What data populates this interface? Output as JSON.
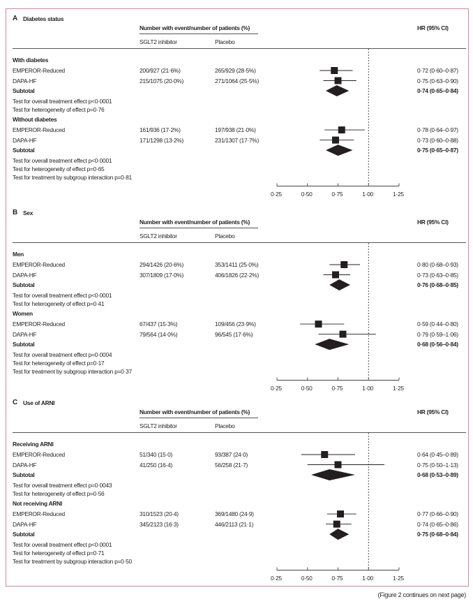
{
  "columns": {
    "header": "Number with event/number of patients (%)",
    "treatment": "SGLT2 inhibitor",
    "control": "Placebo",
    "hr": "HR (95% CI)"
  },
  "footer": "(Figure 2 continues on next page)",
  "colors": {
    "frame": "#d9819f",
    "marks": "#231f20"
  },
  "chart_data": [
    {
      "type": "forest",
      "letter": "A",
      "title": "Diabetes status",
      "xticks": [
        "0·25",
        "0·50",
        "0·75",
        "1·00",
        "1·25"
      ],
      "xlim": [
        0.25,
        1.25
      ],
      "reference_line": 1.0,
      "groups": [
        {
          "name": "With diabetes",
          "studies": [
            {
              "name": "EMPEROR-Reduced",
              "treatment": "200/927 (21·6%)",
              "control": "265/929 (28·5%)",
              "hr": 0.72,
              "lo": 0.6,
              "hi": 0.87,
              "label": "0·72 (0·60–0·87)"
            },
            {
              "name": "DAPA-HF",
              "treatment": "215/1075 (20·0%)",
              "control": "271/1064 (25·5%)",
              "hr": 0.75,
              "lo": 0.63,
              "hi": 0.9,
              "label": "0·75 (0·63–0·90)"
            }
          ],
          "subtotal": {
            "name": "Subtotal",
            "hr": 0.74,
            "lo": 0.65,
            "hi": 0.84,
            "label": "0·74 (0·65–0·84)"
          },
          "tests": [
            "Test for overall treatment effect p<0·0001",
            "Test for heterogeneity of effect p=0·76"
          ]
        },
        {
          "name": "Without diabetes",
          "studies": [
            {
              "name": "EMPEROR-Reduced",
              "treatment": "161/936 (17·2%)",
              "control": "197/938 (21·0%)",
              "hr": 0.78,
              "lo": 0.64,
              "hi": 0.97,
              "label": "0·78 (0·64–0·97)"
            },
            {
              "name": "DAPA-HF",
              "treatment": "171/1298 (13·2%)",
              "control": "231/1307 (17·7%)",
              "hr": 0.73,
              "lo": 0.6,
              "hi": 0.88,
              "label": "0·73 (0·60–0·88)"
            }
          ],
          "subtotal": {
            "name": "Subtotal",
            "hr": 0.75,
            "lo": 0.65,
            "hi": 0.87,
            "label": "0·75 (0·65–0·87)"
          },
          "tests": [
            "Test for overall treatment effect p<0·0001",
            "Test for heterogeneity of effect p=0·65",
            "Test for treatment by subgroup interaction p=0·81"
          ]
        }
      ]
    },
    {
      "type": "forest",
      "letter": "B",
      "title": "Sex",
      "xticks": [
        "0·25",
        "0·50",
        "0·75",
        "1·00",
        "1·25"
      ],
      "xlim": [
        0.25,
        1.25
      ],
      "reference_line": 1.0,
      "groups": [
        {
          "name": "Men",
          "studies": [
            {
              "name": "EMPEROR-Reduced",
              "treatment": "294/1426 (20·6%)",
              "control": "353/1411 (25·0%)",
              "hr": 0.8,
              "lo": 0.68,
              "hi": 0.93,
              "label": "0·80 (0·68–0·93)"
            },
            {
              "name": "DAPA-HF",
              "treatment": "307/1809 (17·0%)",
              "control": "406/1826 (22·2%)",
              "hr": 0.73,
              "lo": 0.63,
              "hi": 0.85,
              "label": "0·73 (0·63–0·85)"
            }
          ],
          "subtotal": {
            "name": "Subtotal",
            "hr": 0.76,
            "lo": 0.68,
            "hi": 0.85,
            "label": "0·76 (0·68–0·85)"
          },
          "tests": [
            "Test for overall treatment effect p<0·0001",
            "Test for heterogeneity of effect p=0·41"
          ]
        },
        {
          "name": "Women",
          "studies": [
            {
              "name": "EMPEROR-Reduced",
              "treatment": "67/437 (15·3%)",
              "control": "109/456 (23·9%)",
              "hr": 0.59,
              "lo": 0.44,
              "hi": 0.8,
              "label": "0·59 (0·44–0·80)"
            },
            {
              "name": "DAPA-HF",
              "treatment": "79/564 (14·0%)",
              "control": "96/545 (17·6%)",
              "hr": 0.79,
              "lo": 0.59,
              "hi": 1.06,
              "label": "0·79 (0·59–1·06)"
            }
          ],
          "subtotal": {
            "name": "Subtotal",
            "hr": 0.68,
            "lo": 0.56,
            "hi": 0.84,
            "label": "0·68 (0·56–0·84)"
          },
          "tests": [
            "Test for overall treatment effect p=0·0004",
            "Test for heterogeneity of effect p=0·17",
            "Test for treatment by subgroup interaction p=0·37"
          ]
        }
      ]
    },
    {
      "type": "forest",
      "letter": "C",
      "title": "Use of ARNI",
      "xticks": [
        "0·25",
        "0·50",
        "0·75",
        "1·00",
        "1·25"
      ],
      "xlim": [
        0.25,
        1.25
      ],
      "reference_line": 1.0,
      "groups": [
        {
          "name": "Receiving ARNI",
          "studies": [
            {
              "name": "EMPEROR-Reduced",
              "treatment": "51/340 (15·0)",
              "control": "93/387 (24·0)",
              "hr": 0.64,
              "lo": 0.45,
              "hi": 0.89,
              "label": "0·64 (0·45–0·89)"
            },
            {
              "name": "DAPA-HF",
              "treatment": "41/250 (16·4)",
              "control": "56/258 (21·7)",
              "hr": 0.75,
              "lo": 0.5,
              "hi": 1.13,
              "label": "0·75 (0·50–1·13)"
            }
          ],
          "subtotal": {
            "name": "Subtotal",
            "hr": 0.68,
            "lo": 0.53,
            "hi": 0.89,
            "label": "0·68 (0·53–0·89)"
          },
          "tests": [
            "Test for overall treatment effect p=0·0043",
            "Test for heterogeneity of effect p=0·56"
          ]
        },
        {
          "name": "Not receiving ARNI",
          "studies": [
            {
              "name": "EMPEROR-Reduced",
              "treatment": "310/1523 (20·4)",
              "control": "369/1480 (24·9)",
              "hr": 0.77,
              "lo": 0.66,
              "hi": 0.9,
              "label": "0·77 (0·66–0·90)"
            },
            {
              "name": "DAPA-HF",
              "treatment": "345/2123 (16·3)",
              "control": "446/2113 (21·1)",
              "hr": 0.74,
              "lo": 0.65,
              "hi": 0.86,
              "label": "0·74 (0·65–0·86)"
            }
          ],
          "subtotal": {
            "name": "Subtotal",
            "hr": 0.75,
            "lo": 0.68,
            "hi": 0.84,
            "label": "0·75 (0·68–0·84)"
          },
          "tests": [
            "Test for overall treatment effect p<0·0001",
            "Test for heterogeneity of effect p=0·71",
            "Test for treatment by subgroup interaction p=0·50"
          ]
        }
      ]
    }
  ]
}
